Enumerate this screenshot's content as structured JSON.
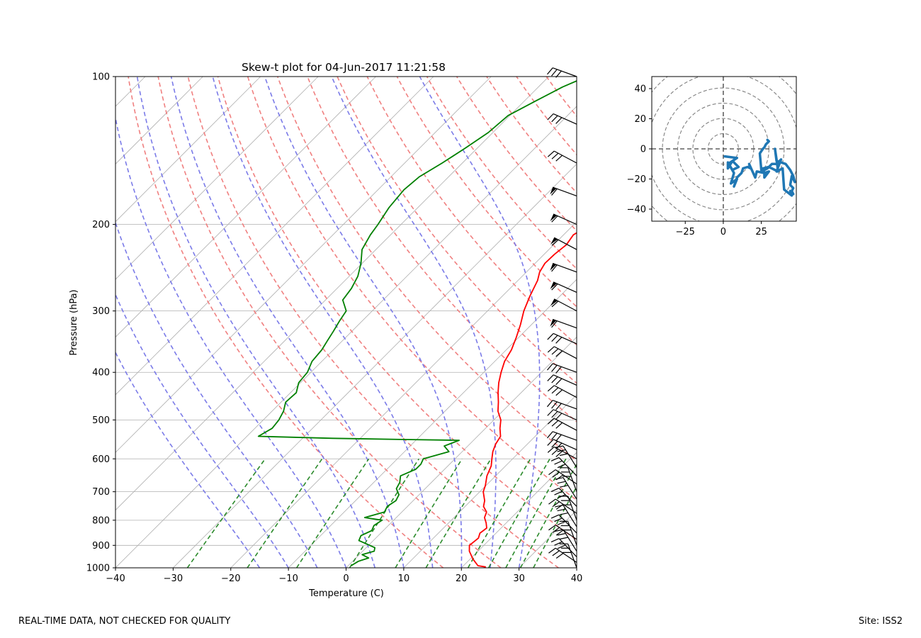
{
  "chart_data": [
    {
      "type": "line",
      "kind": "skew-t",
      "title": "Skew-t plot for 04-Jun-2017 11:21:58",
      "xlabel": "Temperature (C)",
      "ylabel": "Pressure (hPa)",
      "xlim": [
        -40,
        40
      ],
      "ylim": [
        1000,
        100
      ],
      "yscale": "log",
      "x_ticks": [
        -40,
        -30,
        -20,
        -10,
        0,
        10,
        20,
        30,
        40
      ],
      "x_tick_labels": [
        "−40",
        "−30",
        "−20",
        "−10",
        "0",
        "10",
        "20",
        "30",
        "40"
      ],
      "y_ticks": [
        1000,
        900,
        800,
        700,
        600,
        500,
        400,
        300,
        200,
        100
      ],
      "y_tick_labels": [
        "1000",
        "900",
        "800",
        "700",
        "600",
        "500",
        "400",
        "300",
        "200",
        "100"
      ],
      "dry_adiabat_colors": "#f08080",
      "moist_adiabat_colors": "#7b7be8",
      "mixing_ratio_colors": "#2a8a2a",
      "series": [
        {
          "name": "temperature",
          "color": "#ff0000",
          "p": [
            996,
            990,
            960,
            925,
            900,
            870,
            850,
            830,
            810,
            790,
            770,
            750,
            730,
            700,
            680,
            650,
            620,
            600,
            580,
            560,
            540,
            520,
            500,
            480,
            460,
            440,
            420,
            400,
            380,
            360,
            340,
            320,
            300,
            280,
            260,
            250,
            240,
            230,
            220,
            210,
            200,
            190,
            180,
            170,
            160,
            150,
            140,
            130,
            120,
            110,
            105,
            100
          ],
          "t": [
            24.1,
            22.5,
            20.5,
            18.5,
            17.5,
            17.8,
            17.2,
            17.5,
            16.5,
            15.3,
            14.7,
            13.2,
            12.4,
            10.6,
            9.9,
            8.5,
            7.5,
            6.4,
            5.3,
            4.5,
            4.0,
            2.5,
            1.2,
            -0.8,
            -2.3,
            -4.0,
            -5.6,
            -7.0,
            -8.3,
            -9.1,
            -10.4,
            -11.9,
            -13.7,
            -15.2,
            -16.6,
            -17.7,
            -18.3,
            -18.2,
            -17.8,
            -18.3,
            -17.1,
            -15.5,
            -15.0,
            -15.9,
            -15.4,
            -15.9,
            -14.9,
            -14.3,
            -13.9,
            -12.1,
            -9.6,
            -6.1
          ]
        },
        {
          "name": "dewpoint",
          "color": "#008000",
          "p": [
            990,
            970,
            955,
            940,
            925,
            910,
            880,
            860,
            840,
            820,
            800,
            790,
            770,
            750,
            730,
            710,
            690,
            670,
            650,
            630,
            615,
            600,
            580,
            565,
            550,
            548,
            545,
            540,
            520,
            500,
            480,
            460,
            440,
            420,
            400,
            380,
            360,
            345,
            330,
            315,
            300,
            285,
            270,
            255,
            240,
            225,
            210,
            200,
            185,
            170,
            160,
            150,
            140,
            130,
            120,
            112,
            105,
            100
          ],
          "t": [
            0.5,
            1.0,
            2.2,
            0.5,
            2.0,
            1.5,
            -2.5,
            -3.0,
            -2.0,
            -2.5,
            -2.0,
            -5.5,
            -3.0,
            -3.5,
            -3.0,
            -3.5,
            -5.0,
            -5.5,
            -6.5,
            -5.0,
            -5.0,
            -5.5,
            -2.3,
            -4.1,
            -2.5,
            -12.0,
            -24.8,
            -38.0,
            -37.0,
            -37.3,
            -38.0,
            -39.2,
            -39.0,
            -40.3,
            -40.6,
            -41.7,
            -42.0,
            -42.6,
            -43.2,
            -43.9,
            -44.5,
            -47.0,
            -47.5,
            -48.5,
            -50.2,
            -52.4,
            -53.5,
            -54.0,
            -55.0,
            -55.5,
            -55.1,
            -53.5,
            -52.1,
            -50.8,
            -50.3,
            -48.0,
            -45.8,
            -43.4
          ]
        }
      ],
      "dry_adiabats_theta_K": [
        290,
        300,
        310,
        320,
        330,
        340,
        350,
        360,
        370,
        380,
        390,
        400,
        410,
        420,
        430,
        440,
        450,
        460
      ],
      "moist_adiabats_start_C": [
        -15,
        -10,
        -5,
        0,
        5,
        10,
        15,
        20,
        25,
        30
      ],
      "mixing_ratios_gkg": [
        0.4,
        1,
        2,
        4,
        7,
        10,
        16,
        20,
        24,
        28,
        32
      ],
      "wind_barbs": "black wind barbs along right edge (kt) from 1000 to 100 hPa"
    },
    {
      "type": "line",
      "kind": "hodograph",
      "xlim": [
        -47,
        48
      ],
      "ylim": [
        -48,
        48
      ],
      "x_ticks": [
        -25,
        0,
        25
      ],
      "x_tick_labels": [
        "−25",
        "0",
        "25"
      ],
      "y_ticks": [
        -40,
        -20,
        0,
        20,
        40
      ],
      "y_tick_labels": [
        "−40",
        "−20",
        "0",
        "20",
        "40"
      ],
      "rings": [
        10,
        20,
        30,
        40,
        50,
        60
      ],
      "color": "#1f77b4",
      "u": [
        1,
        9,
        3,
        3,
        6,
        10,
        6,
        3,
        7,
        5,
        9,
        7,
        9,
        12,
        13,
        16,
        18,
        17,
        21,
        22,
        27,
        27,
        30,
        27,
        26,
        30,
        36,
        35,
        34,
        35,
        41,
        44,
        46,
        47,
        45,
        44,
        46,
        45,
        46,
        44,
        45,
        40,
        39,
        35,
        38,
        35,
        32,
        29,
        27,
        25,
        24,
        26,
        27,
        28,
        29,
        30,
        29
      ],
      "v": [
        -5,
        -6,
        -10,
        -13,
        -8,
        -12,
        -14,
        -9,
        -16,
        -23,
        -20,
        -25,
        -19,
        -16,
        -13,
        -12,
        -13,
        -10,
        -19,
        -15,
        -16,
        -19,
        -15,
        -16,
        -13,
        -12,
        -15,
        -7,
        0,
        -8,
        -10,
        -14,
        -18,
        -22,
        -18,
        -24,
        -26,
        -28,
        -30,
        -28,
        -31,
        -27,
        -13,
        -15,
        -7,
        -10,
        -10,
        -13,
        -14,
        -14,
        -3,
        0,
        1,
        3,
        4,
        5,
        6
      ]
    }
  ],
  "footer": {
    "left": "REAL-TIME DATA, NOT CHECKED FOR QUALITY",
    "right": "Site: ISS2"
  }
}
